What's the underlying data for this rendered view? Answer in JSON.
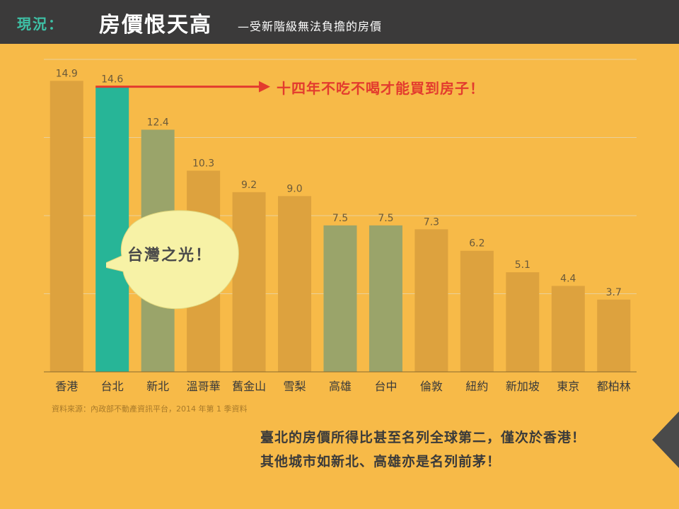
{
  "header": {
    "section_label": "現況：",
    "title": "房價恨天高",
    "subtitle": "—受新階級無法負擔的房價"
  },
  "chart_data": {
    "type": "bar",
    "categories": [
      "香港",
      "台北",
      "新北",
      "溫哥華",
      "舊金山",
      "雪梨",
      "高雄",
      "台中",
      "倫敦",
      "紐約",
      "新加坡",
      "東京",
      "都柏林"
    ],
    "values": [
      14.9,
      14.6,
      12.4,
      10.3,
      9.2,
      9.0,
      7.5,
      7.5,
      7.3,
      6.2,
      5.1,
      4.4,
      3.7
    ],
    "value_labels": [
      "14.9",
      "14.6",
      "12.4",
      "10.3",
      "9.2",
      "9.0",
      "7.5",
      "7.5",
      "7.3",
      "6.2",
      "5.1",
      "4.4",
      "3.7"
    ],
    "bar_colors": [
      "#DDA23E",
      "#27B597",
      "#9AA46A",
      "#DDA23E",
      "#DDA23E",
      "#DDA23E",
      "#9AA46A",
      "#9AA46A",
      "#DDA23E",
      "#DDA23E",
      "#DDA23E",
      "#DDA23E",
      "#DDA23E"
    ],
    "ylim": [
      0,
      16
    ],
    "grid": true,
    "title": "",
    "xlabel": "",
    "ylabel": ""
  },
  "annotation": "十四年不吃不喝才能買到房子！",
  "bubble_text": "台灣之光！",
  "source": "資料來源：內政部不動產資訊平台，2014 年第 1 季資料",
  "notes": [
    "臺北的房價所得比甚至名列全球第二，僅次於香港！",
    "其他城市如新北、高雄亦是名列前茅！"
  ],
  "colors": {
    "background": "#F7BA48",
    "header": "#3B3A3A",
    "accent": "#3EC1A6",
    "arrow": "#E33B2E"
  }
}
